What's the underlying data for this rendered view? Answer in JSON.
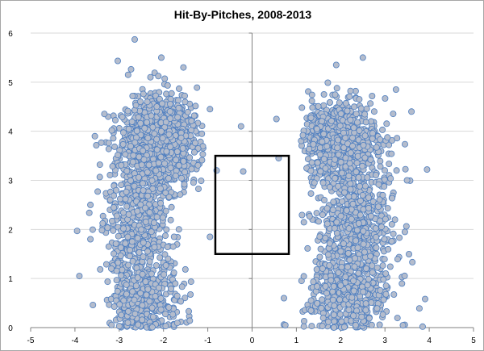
{
  "chart_data": {
    "type": "scatter",
    "title": "Hit-By-Pitches, 2008-2013",
    "xlabel": "",
    "ylabel": "",
    "xlim": [
      -5,
      5
    ],
    "ylim": [
      0,
      6
    ],
    "x_ticks": [
      "-5",
      "-4",
      "-3",
      "-2",
      "-1",
      "0",
      "1",
      "2",
      "3",
      "4",
      "5"
    ],
    "y_ticks": [
      "0",
      "1",
      "2",
      "3",
      "4",
      "5",
      "6"
    ],
    "grid": {
      "horizontal": true,
      "vertical": false
    },
    "legend": "none",
    "strike_zone": {
      "x": [
        -0.83,
        0.83
      ],
      "y": [
        1.5,
        3.5
      ]
    },
    "colors": {
      "marker_fill": "#b4bccc",
      "marker_edge": "#4f7fc0",
      "grid": "#d9d9d9",
      "axis": "#808080",
      "zone": "#000000"
    },
    "clusters": [
      {
        "name": "",
        "center": [
          -2.0,
          3.8
        ],
        "spread": [
          0.38,
          0.42
        ],
        "count": 1100
      },
      {
        "name": "",
        "center": [
          -2.6,
          2.2
        ],
        "spread": [
          0.35,
          1.1
        ],
        "count": 650
      },
      {
        "name": "",
        "center": [
          -2.3,
          0.6
        ],
        "spread": [
          0.4,
          0.45
        ],
        "count": 300
      },
      {
        "name": "",
        "center": [
          2.0,
          3.8
        ],
        "spread": [
          0.4,
          0.4
        ],
        "count": 800
      },
      {
        "name": "",
        "center": [
          2.3,
          2.0
        ],
        "spread": [
          0.45,
          0.9
        ],
        "count": 700
      },
      {
        "name": "",
        "center": [
          2.1,
          0.6
        ],
        "spread": [
          0.45,
          0.4
        ],
        "count": 320
      }
    ],
    "outliers": [
      {
        "x": -2.65,
        "y": 5.87
      },
      {
        "x": -2.8,
        "y": 5.15
      },
      {
        "x": -2.05,
        "y": 5.5
      },
      {
        "x": -1.55,
        "y": 5.3
      },
      {
        "x": -0.95,
        "y": 4.45
      },
      {
        "x": -0.8,
        "y": 3.2
      },
      {
        "x": -0.25,
        "y": 4.1
      },
      {
        "x": -0.2,
        "y": 3.18
      },
      {
        "x": -0.95,
        "y": 1.85
      },
      {
        "x": -3.65,
        "y": 1.8
      },
      {
        "x": -3.9,
        "y": 1.05
      },
      {
        "x": -3.65,
        "y": 2.5
      },
      {
        "x": -3.55,
        "y": 3.9
      },
      {
        "x": 0.55,
        "y": 4.25
      },
      {
        "x": 0.6,
        "y": 3.45
      },
      {
        "x": 0.75,
        "y": 0.05
      },
      {
        "x": 0.72,
        "y": 0.6
      },
      {
        "x": 3.95,
        "y": 3.22
      },
      {
        "x": 3.6,
        "y": 4.4
      },
      {
        "x": 3.45,
        "y": 1.95
      },
      {
        "x": 3.85,
        "y": 0.02
      },
      {
        "x": 3.25,
        "y": 4.85
      },
      {
        "x": 2.5,
        "y": 5.5
      },
      {
        "x": 1.9,
        "y": 5.35
      },
      {
        "x": 3.5,
        "y": 3.0
      },
      {
        "x": -3.95,
        "y": 1.97
      }
    ]
  }
}
